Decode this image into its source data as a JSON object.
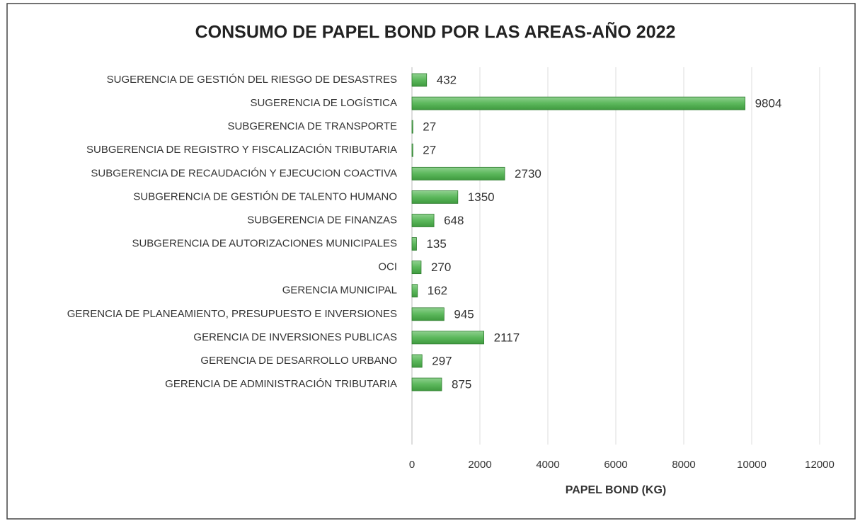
{
  "chart_data": {
    "type": "barh",
    "title": "CONSUMO DE PAPEL BOND POR LAS AREAS-AÑO 2022",
    "xlabel": "PAPEL BOND (KG)",
    "categories": [
      "SUGERENCIA DE GESTIÓN DEL RIESGO DE DESASTRES",
      "SUGERENCIA DE LOGÍSTICA",
      "SUBGERENCIA DE TRANSPORTE",
      "SUBGERENCIA DE REGISTRO Y FISCALIZACIÓN TRIBUTARIA",
      "SUBGERENCIA DE RECAUDACIÓN Y EJECUCION COACTIVA",
      "SUBGERENCIA DE GESTIÓN DE TALENTO HUMANO",
      "SUBGERENCIA DE FINANZAS",
      "SUBGERENCIA DE AUTORIZACIONES MUNICIPALES",
      "OCI",
      "GERENCIA MUNICIPAL",
      "GERENCIA DE PLANEAMIENTO, PRESUPUESTO E INVERSIONES",
      "GERENCIA DE INVERSIONES PUBLICAS",
      "GERENCIA DE DESARROLLO URBANO",
      "GERENCIA DE ADMINISTRACIÓN TRIBUTARIA"
    ],
    "values": [
      432,
      9804,
      27,
      27,
      2730,
      1350,
      648,
      135,
      270,
      162,
      945,
      2117,
      297,
      875
    ],
    "color": "#5cb85c",
    "xlim": [
      0,
      12000
    ],
    "xticks": [
      0,
      2000,
      4000,
      6000,
      8000,
      10000,
      12000
    ],
    "grid": true
  }
}
